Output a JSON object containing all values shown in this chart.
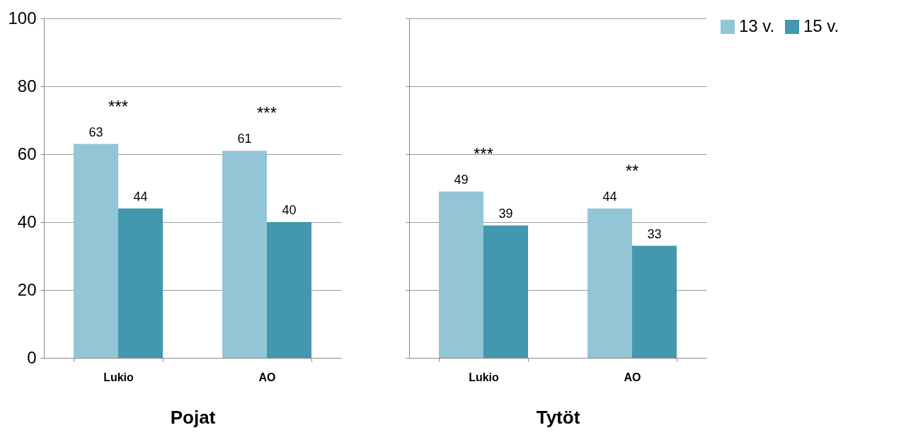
{
  "chart_data": [
    {
      "type": "bar",
      "xlabel": "Pojat",
      "categories": [
        "Lukio",
        "AO"
      ],
      "series": [
        {
          "color": "#92c5d6",
          "values": [
            63,
            61
          ]
        },
        {
          "color": "#4397ae",
          "values": [
            44,
            40
          ]
        }
      ],
      "ylim": [
        0,
        100
      ],
      "yticks": [
        0,
        20,
        40,
        60,
        80,
        100
      ],
      "grid": "y",
      "data_labels": true,
      "legend": false,
      "annotations": [
        "***",
        "***"
      ]
    },
    {
      "type": "bar",
      "xlabel": "Tytöt",
      "categories": [
        "Lukio",
        "AO"
      ],
      "series": [
        {
          "name": "13 v.",
          "color": "#92c5d6",
          "values": [
            49,
            44
          ]
        },
        {
          "name": "15 v.",
          "color": "#4397ae",
          "values": [
            39,
            33
          ]
        }
      ],
      "ylim": [
        0,
        100
      ],
      "yticks": [
        0,
        20,
        40,
        60,
        80,
        100
      ],
      "grid": "y",
      "data_labels": true,
      "legend": "right",
      "tick_labels": "x",
      "annotations": [
        "***",
        "**"
      ]
    }
  ]
}
